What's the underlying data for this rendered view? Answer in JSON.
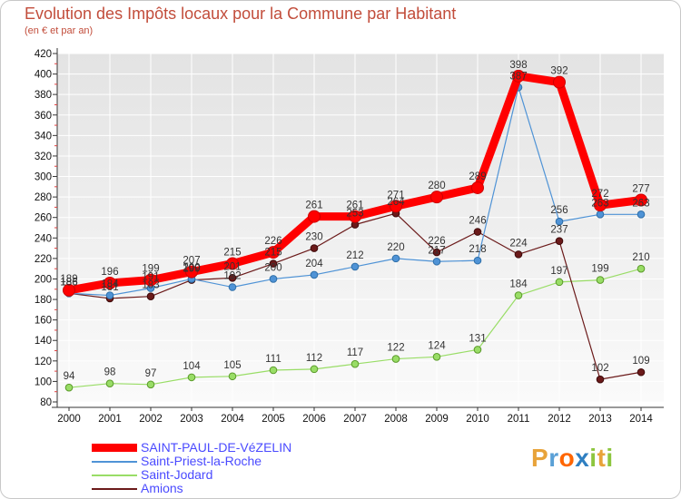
{
  "title": "Evolution des Impôts locaux pour la Commune par Habitant",
  "subtitle": "(en € et par an)",
  "logo": {
    "text": "Proxiti",
    "letters": [
      "P",
      "r",
      "o",
      "x",
      "i",
      "t",
      "i"
    ],
    "colors": [
      "#e8a33a",
      "#5aa0d6",
      "#ff6600",
      "#2f7fc1",
      "#8dc63f",
      "#e8a33a",
      "#8dc63f"
    ]
  },
  "chart_data": {
    "type": "line",
    "title": "Evolution des Impôts locaux pour la Commune par Habitant",
    "subtitle": "(en € et par an)",
    "xlabel": "",
    "ylabel": "",
    "ylim": [
      80,
      420
    ],
    "yticks": [
      80,
      100,
      120,
      140,
      160,
      180,
      200,
      220,
      240,
      260,
      280,
      300,
      320,
      340,
      360,
      380,
      400,
      420
    ],
    "grid": true,
    "legend_position": "bottom-left",
    "categories": [
      "2000",
      "2001",
      "2002",
      "2003",
      "2004",
      "2005",
      "2006",
      "2007",
      "2008",
      "2009",
      "2010",
      "2011",
      "2012",
      "2013",
      "2014"
    ],
    "series": [
      {
        "name": "SAINT-PAUL-DE-VéZELIN",
        "color": "#ff0000",
        "values": [
          189,
          196,
          199,
          207,
          215,
          226,
          261,
          261,
          271,
          280,
          289,
          398,
          392,
          272,
          277
        ]
      },
      {
        "name": "Saint-Priest-la-Roche",
        "color": "#4f93d6",
        "values": [
          186,
          184,
          191,
          200,
          192,
          200,
          204,
          212,
          220,
          217,
          218,
          387,
          256,
          263,
          263
        ]
      },
      {
        "name": "Saint-Jodard",
        "color": "#99dd66",
        "values": [
          94,
          98,
          97,
          104,
          105,
          111,
          112,
          117,
          122,
          124,
          131,
          184,
          197,
          199,
          210
        ]
      },
      {
        "name": "Amions",
        "color": "#6b1a1a",
        "values": [
          186,
          181,
          183,
          199,
          201,
          215,
          230,
          253,
          264,
          226,
          246,
          224,
          237,
          102,
          109
        ]
      }
    ]
  }
}
